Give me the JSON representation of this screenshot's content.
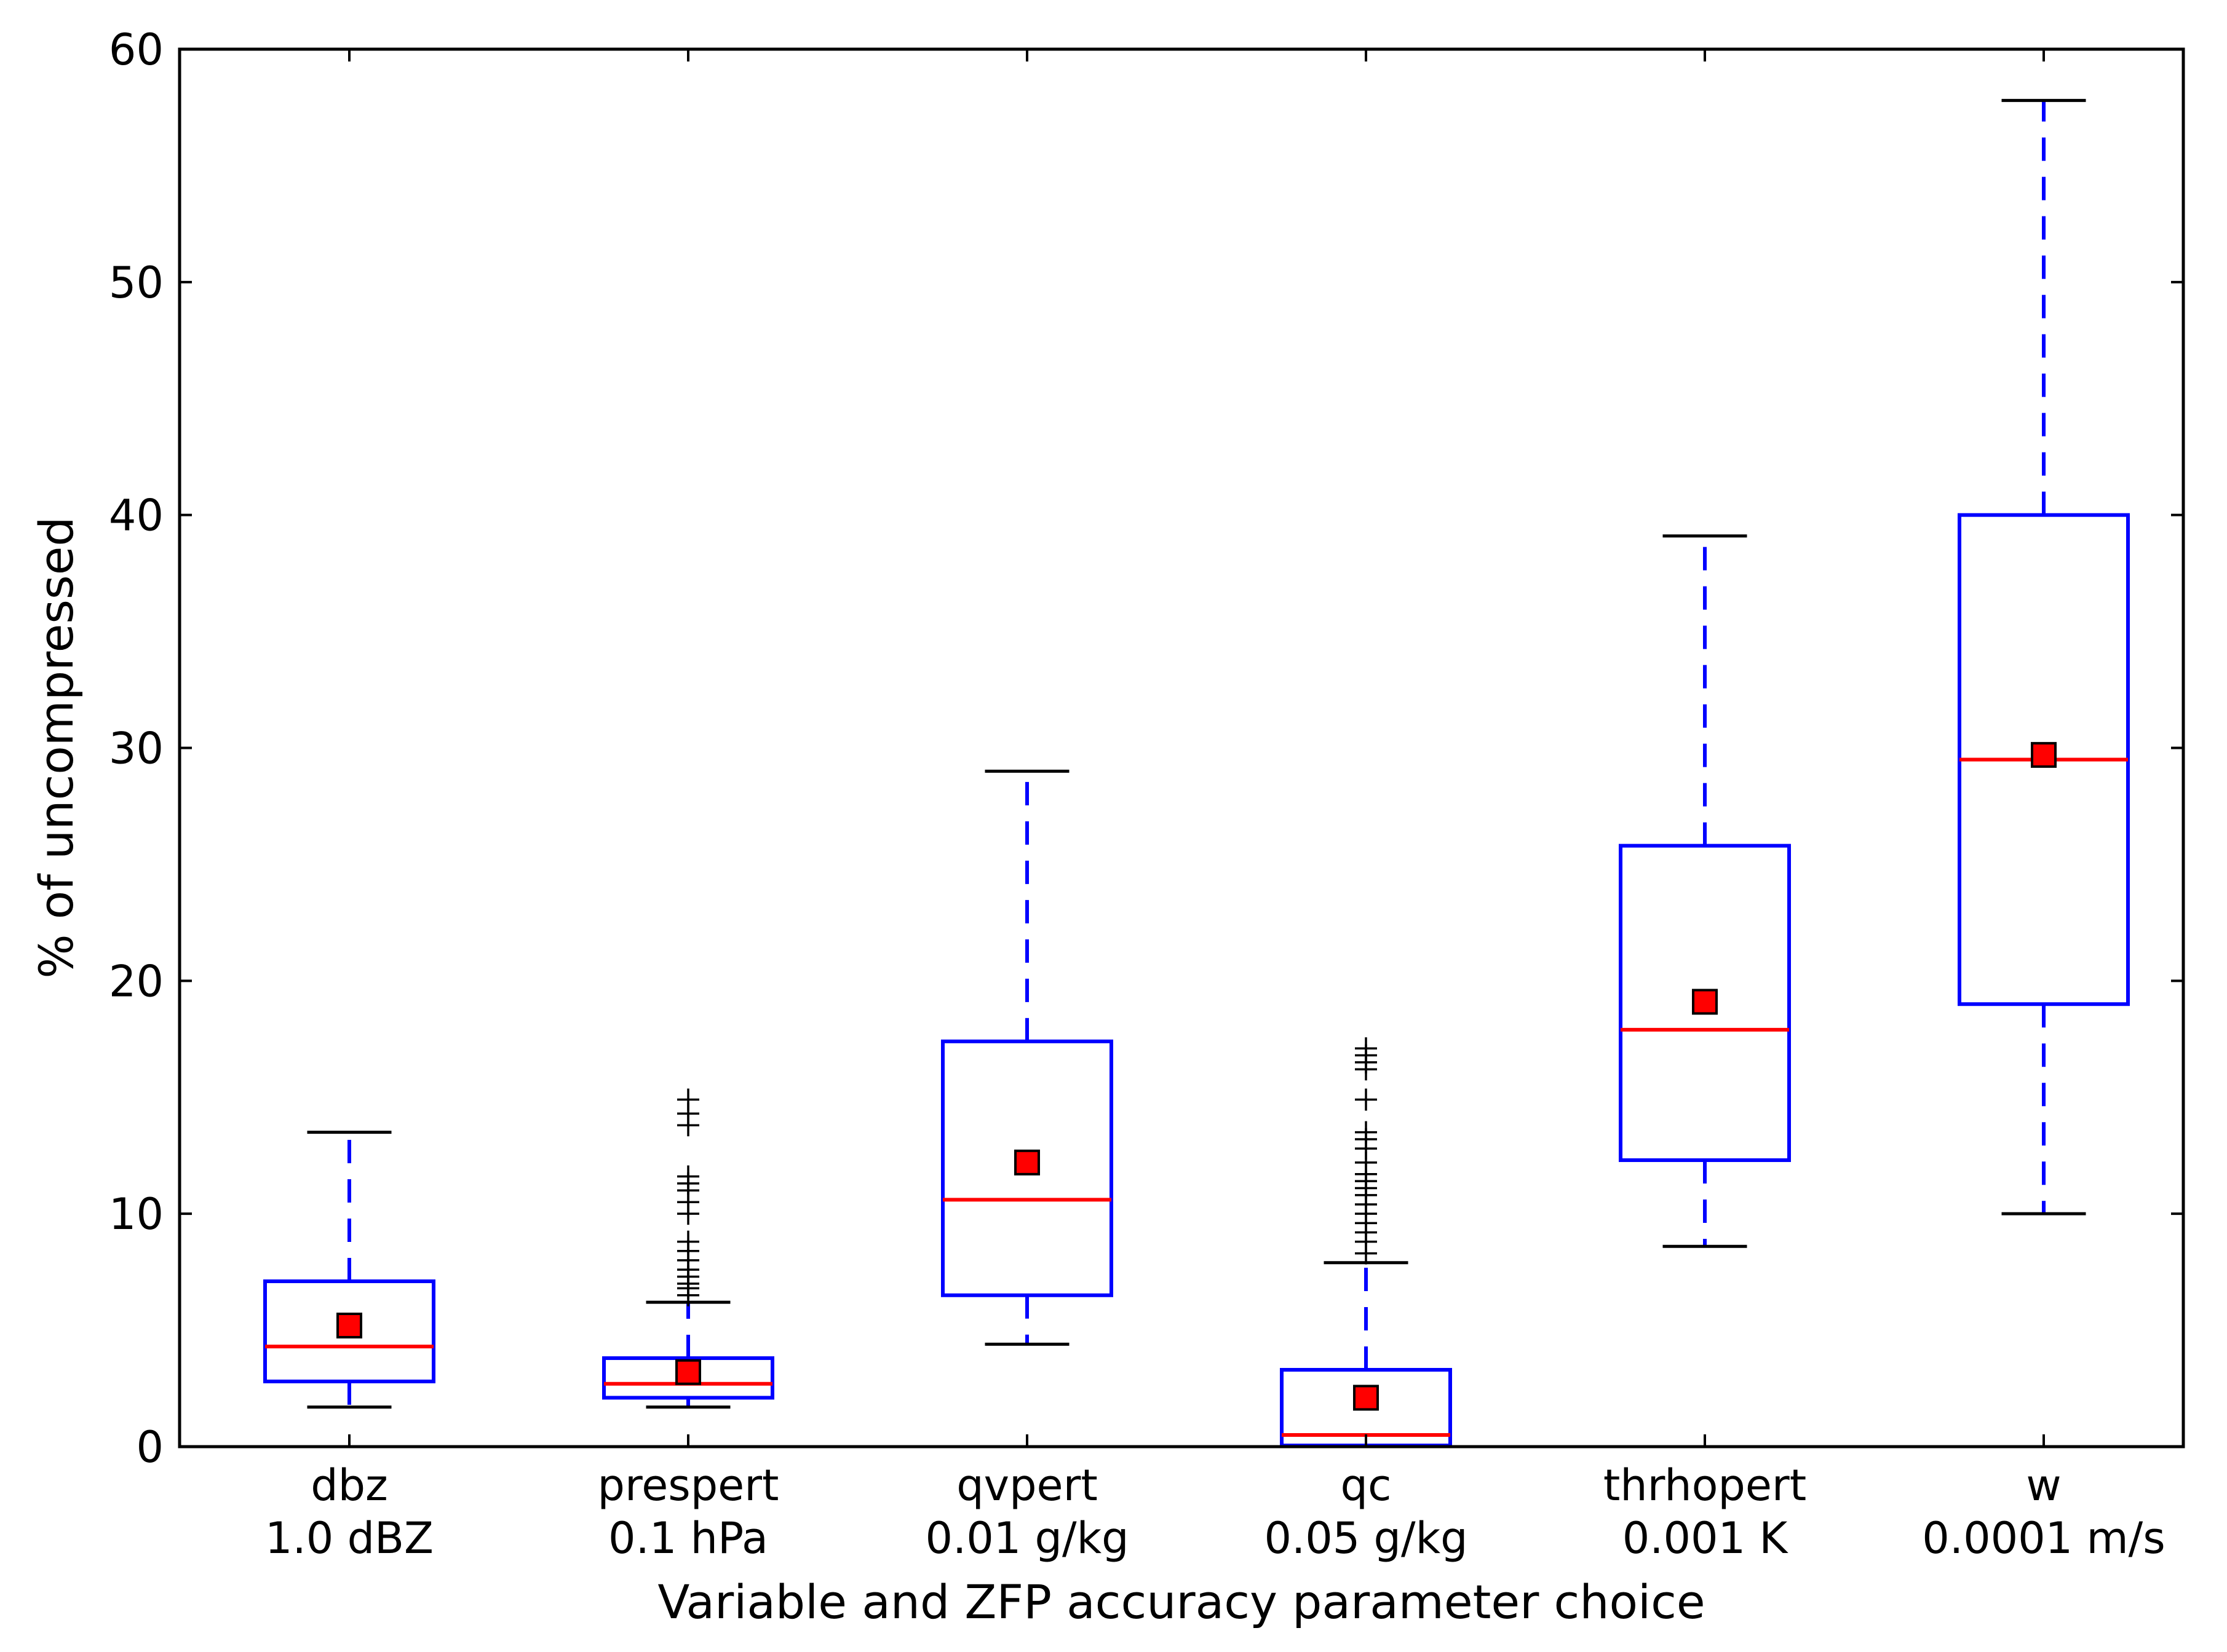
{
  "chart_data": {
    "type": "boxplot",
    "title": "",
    "xlabel": "Variable and ZFP accuracy parameter choice",
    "ylabel": "% of uncompressed",
    "ylim": [
      0,
      60
    ],
    "yticks": [
      0,
      10,
      20,
      30,
      40,
      50,
      60
    ],
    "legend": "none",
    "grid": false,
    "colors": {
      "box": "#0000ff",
      "median": "#ff0000",
      "mean_marker": "#ff0000",
      "whisker_cap": "#000000",
      "flier": "#000000"
    },
    "categories": [
      {
        "name": "dbz",
        "parameter": "1.0 dBZ",
        "whislo": 1.7,
        "q1": 2.8,
        "median": 4.3,
        "q3": 7.1,
        "whishi": 13.5,
        "mean": 5.2,
        "fliers": []
      },
      {
        "name": "prespert",
        "parameter": "0.1 hPa",
        "whislo": 1.7,
        "q1": 2.1,
        "median": 2.7,
        "q3": 3.8,
        "whishi": 6.2,
        "mean": 3.2,
        "fliers": [
          6.5,
          6.8,
          7.0,
          7.3,
          7.6,
          8.0,
          8.4,
          8.8,
          10.0,
          10.5,
          11.0,
          11.3,
          11.6,
          13.8,
          14.3,
          14.9
        ]
      },
      {
        "name": "qvpert",
        "parameter": "0.01 g/kg",
        "whislo": 4.4,
        "q1": 6.5,
        "median": 10.6,
        "q3": 17.4,
        "whishi": 29.0,
        "mean": 12.2,
        "fliers": []
      },
      {
        "name": "qc",
        "parameter": "0.05 g/kg",
        "whislo": 0.0,
        "q1": 0.05,
        "median": 0.5,
        "q3": 3.3,
        "whishi": 7.9,
        "mean": 2.1,
        "fliers": [
          8.3,
          8.8,
          9.2,
          9.6,
          10.0,
          10.4,
          10.8,
          11.1,
          11.4,
          11.7,
          12.2,
          12.8,
          13.2,
          13.5,
          14.9,
          16.2,
          16.5,
          16.8,
          17.1
        ]
      },
      {
        "name": "thrhopert",
        "parameter": "0.001 K",
        "whislo": 8.6,
        "q1": 12.3,
        "median": 17.9,
        "q3": 25.8,
        "whishi": 39.1,
        "mean": 19.1,
        "fliers": []
      },
      {
        "name": "w",
        "parameter": "0.0001 m/s",
        "whislo": 10.0,
        "q1": 19.0,
        "median": 29.5,
        "q3": 40.0,
        "whishi": 57.8,
        "mean": 29.7,
        "fliers": []
      }
    ]
  }
}
